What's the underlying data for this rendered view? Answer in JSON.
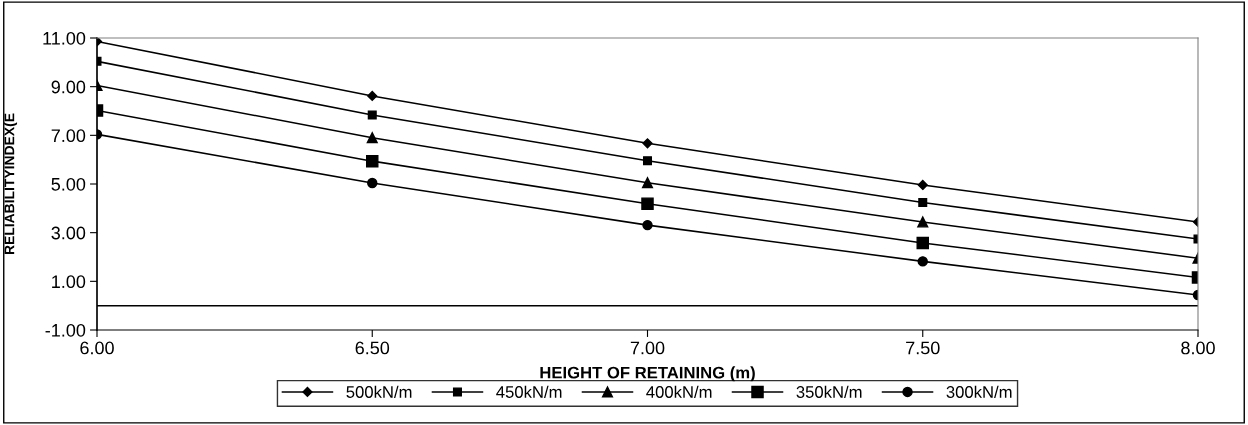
{
  "chart_data": {
    "type": "line",
    "xlabel": "HEIGHT OF RETAINING (m)",
    "ylabel": "RELIABILITYINDEX(E",
    "x": [
      6.0,
      6.5,
      7.0,
      7.5,
      8.0
    ],
    "xlim": [
      6.0,
      8.0
    ],
    "xticks": [
      {
        "value": 6.0,
        "label": "6.00"
      },
      {
        "value": 6.5,
        "label": "6.50"
      },
      {
        "value": 7.0,
        "label": "7.00"
      },
      {
        "value": 7.5,
        "label": "7.50"
      },
      {
        "value": 8.0,
        "label": "8.00"
      }
    ],
    "ylim": [
      -1,
      11
    ],
    "yticks": [
      {
        "value": -1,
        "label": "-1.00"
      },
      {
        "value": 1,
        "label": "1.00"
      },
      {
        "value": 3,
        "label": "3.00"
      },
      {
        "value": 5,
        "label": "5.00"
      },
      {
        "value": 7,
        "label": "7.00"
      },
      {
        "value": 9,
        "label": "9.00"
      },
      {
        "value": 11,
        "label": "11.00"
      }
    ],
    "grid": false,
    "legend": "bottom",
    "line_style": "solid",
    "ref_lines": [
      {
        "axis": "y",
        "value": 0,
        "color": "#000000"
      }
    ],
    "series": [
      {
        "name": "500kN/m",
        "color": "#000000",
        "marker": "diamond",
        "values": [
          10.86,
          8.62,
          6.67,
          4.96,
          3.44
        ]
      },
      {
        "name": "450kN/m",
        "color": "#000000",
        "marker": "square",
        "values": [
          10.04,
          7.84,
          5.96,
          4.24,
          2.74
        ]
      },
      {
        "name": "400kN/m",
        "color": "#000000",
        "marker": "triangle",
        "values": [
          9.05,
          6.9,
          5.05,
          3.44,
          1.95
        ]
      },
      {
        "name": "350kN/m",
        "color": "#000000",
        "marker": "square",
        "values": [
          8.02,
          5.94,
          4.19,
          2.58,
          1.16
        ]
      },
      {
        "name": "300kN/m",
        "color": "#000000",
        "marker": "circle",
        "values": [
          7.04,
          5.04,
          3.31,
          1.82,
          0.44
        ]
      }
    ]
  }
}
